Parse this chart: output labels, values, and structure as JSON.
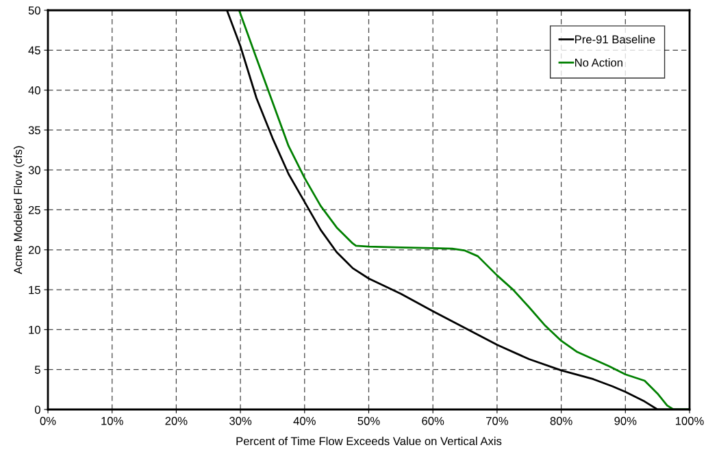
{
  "chart_data": {
    "type": "line",
    "xlabel": "Percent of Time Flow Exceeds Value on Vertical Axis",
    "ylabel": "Acme Modeled Flow (cfs)",
    "series": [
      {
        "name": "Pre-91 Baseline",
        "color": "#000000",
        "x": [
          27.9,
          30,
          32.5,
          35,
          37.5,
          40,
          42.5,
          45,
          47.5,
          50,
          55,
          60,
          65,
          70,
          75,
          80,
          85,
          88,
          90,
          93,
          95,
          100
        ],
        "values": [
          50,
          45.5,
          39,
          34,
          29.5,
          26,
          22.5,
          19.7,
          17.7,
          16.4,
          14.5,
          12.3,
          10.2,
          8.1,
          6.3,
          4.9,
          3.8,
          2.9,
          2.2,
          1.0,
          0,
          0
        ]
      },
      {
        "name": "No Action",
        "color": "#008000",
        "x": [
          29.8,
          32.5,
          35,
          37.5,
          40,
          42.5,
          45,
          47.5,
          48,
          50,
          55,
          60,
          63,
          65,
          67,
          68.5,
          70,
          72.5,
          75,
          77.5,
          80,
          82.5,
          85,
          87.5,
          90,
          93,
          95,
          96.5,
          97.5,
          100
        ],
        "values": [
          50,
          44,
          38.5,
          33,
          29,
          25.5,
          22.8,
          20.8,
          20.5,
          20.4,
          20.3,
          20.2,
          20.15,
          19.9,
          19.2,
          18,
          16.8,
          15,
          12.8,
          10.5,
          8.6,
          7.2,
          6.3,
          5.4,
          4.4,
          3.6,
          2.0,
          0.5,
          0,
          0
        ]
      }
    ],
    "xlim": [
      0,
      100
    ],
    "xticks": [
      {
        "value": 0,
        "label": "0%"
      },
      {
        "value": 10,
        "label": "10%"
      },
      {
        "value": 20,
        "label": "20%"
      },
      {
        "value": 30,
        "label": "30%"
      },
      {
        "value": 40,
        "label": "40%"
      },
      {
        "value": 50,
        "label": "50%"
      },
      {
        "value": 60,
        "label": "60%"
      },
      {
        "value": 70,
        "label": "70%"
      },
      {
        "value": 80,
        "label": "80%"
      },
      {
        "value": 90,
        "label": "90%"
      },
      {
        "value": 100,
        "label": "100%"
      }
    ],
    "ylim": [
      0,
      50
    ],
    "yticks": [
      0,
      5,
      10,
      15,
      20,
      25,
      30,
      35,
      40,
      45,
      50
    ],
    "grid": true,
    "legend": "top right",
    "line_style": "solid",
    "marker": "none"
  }
}
